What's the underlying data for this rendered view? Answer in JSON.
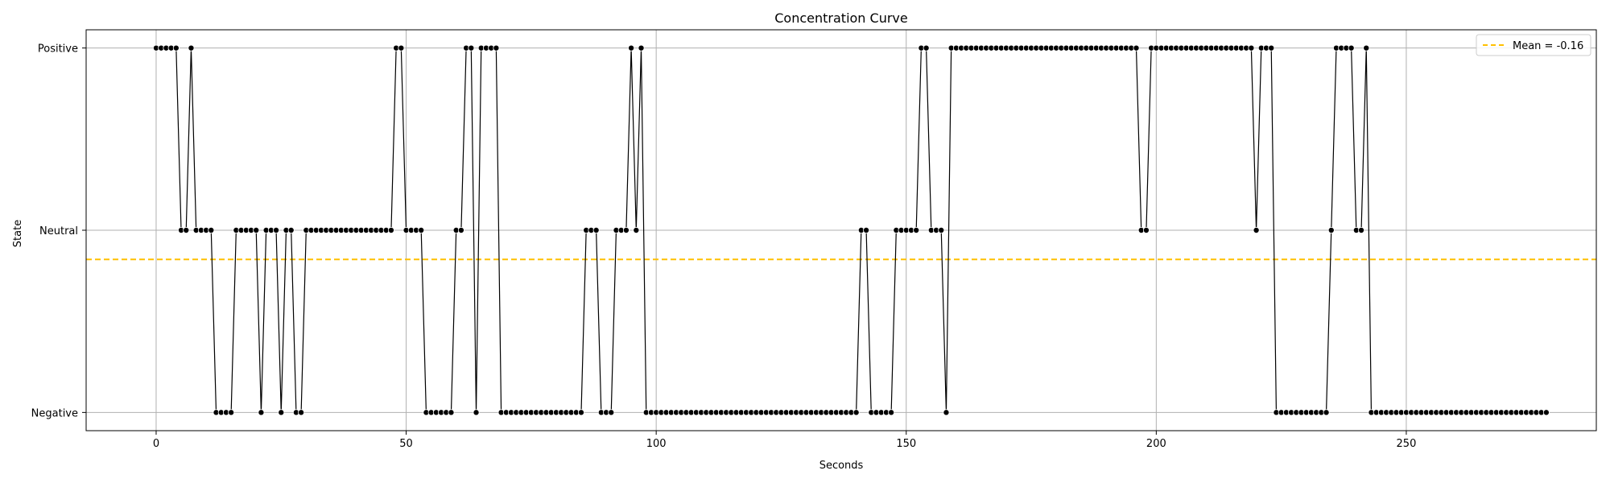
{
  "chart_data": {
    "type": "line",
    "title": "Concentration Curve",
    "xlabel": "Seconds",
    "ylabel": "State",
    "xlim": [
      -14,
      288
    ],
    "ylim": [
      -1.1,
      1.1
    ],
    "xticks": [
      0,
      50,
      100,
      150,
      200,
      250
    ],
    "yticks": [
      {
        "value": -1,
        "label": "Negative"
      },
      {
        "value": 0,
        "label": "Neutral"
      },
      {
        "value": 1,
        "label": "Positive"
      }
    ],
    "grid": true,
    "legend": {
      "position": "top-right",
      "entries": [
        {
          "label": "Mean = -0.16",
          "color": "#ffc000",
          "style": "dashed"
        }
      ]
    },
    "mean": -0.16,
    "line_color": "#000000",
    "marker_color": "#000000",
    "series": [
      {
        "x_start": 0,
        "x_step": 1,
        "values": [
          1,
          1,
          1,
          1,
          1,
          0,
          0,
          1,
          0,
          0,
          0,
          0,
          -1,
          -1,
          -1,
          -1,
          0,
          0,
          0,
          0,
          0,
          -1,
          0,
          0,
          0,
          -1,
          0,
          0,
          -1,
          -1,
          0,
          0,
          0,
          0,
          0,
          0,
          0,
          0,
          0,
          0,
          0,
          0,
          0,
          0,
          0,
          0,
          0,
          0,
          1,
          1,
          0,
          0,
          0,
          0,
          -1,
          -1,
          -1,
          -1,
          -1,
          -1,
          0,
          0,
          1,
          1,
          -1,
          1,
          1,
          1,
          1,
          -1,
          -1,
          -1,
          -1,
          -1,
          -1,
          -1,
          -1,
          -1,
          -1,
          -1,
          -1,
          -1,
          -1,
          -1,
          -1,
          -1,
          0,
          0,
          0,
          -1,
          -1,
          -1,
          0,
          0,
          0,
          1,
          0,
          1,
          -1,
          -1,
          -1,
          -1,
          -1,
          -1,
          -1,
          -1,
          -1,
          -1,
          -1,
          -1,
          -1,
          -1,
          -1,
          -1,
          -1,
          -1,
          -1,
          -1,
          -1,
          -1,
          -1,
          -1,
          -1,
          -1,
          -1,
          -1,
          -1,
          -1,
          -1,
          -1,
          -1,
          -1,
          -1,
          -1,
          -1,
          -1,
          -1,
          -1,
          -1,
          -1,
          -1,
          0,
          0,
          -1,
          -1,
          -1,
          -1,
          -1,
          0,
          0,
          0,
          0,
          0,
          1,
          1,
          0,
          0,
          0,
          -1,
          1,
          1,
          1,
          1,
          1,
          1,
          1,
          1,
          1,
          1,
          1,
          1,
          1,
          1,
          1,
          1,
          1,
          1,
          1,
          1,
          1,
          1,
          1,
          1,
          1,
          1,
          1,
          1,
          1,
          1,
          1,
          1,
          1,
          1,
          1,
          1,
          1,
          1,
          0,
          0,
          1,
          1,
          1,
          1,
          1,
          1,
          1,
          1,
          1,
          1,
          1,
          1,
          1,
          1,
          1,
          1,
          1,
          1,
          1,
          1,
          1,
          0,
          1,
          1,
          1,
          -1,
          -1,
          -1,
          -1,
          -1,
          -1,
          -1,
          -1,
          -1,
          -1,
          -1,
          0,
          1,
          1,
          1,
          1,
          0,
          0,
          1,
          -1,
          -1,
          -1,
          -1,
          -1,
          -1,
          -1,
          -1,
          -1,
          -1,
          -1,
          -1,
          -1,
          -1,
          -1,
          -1,
          -1,
          -1,
          -1,
          -1,
          -1,
          -1,
          -1,
          -1,
          -1,
          -1,
          -1,
          -1,
          -1,
          -1,
          -1,
          -1,
          -1,
          -1,
          -1,
          -1
        ]
      }
    ]
  }
}
